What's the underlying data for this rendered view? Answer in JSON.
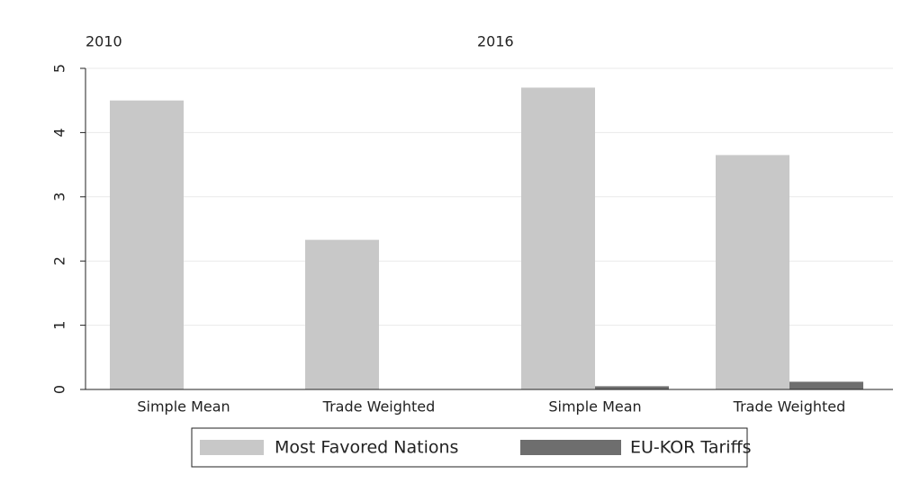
{
  "chart_data": [
    {
      "type": "bar",
      "title": "2010",
      "categories": [
        "Simple Mean",
        "Trade Weighted"
      ],
      "series": [
        {
          "name": "Most Favored Nations",
          "color": "#c8c8c8",
          "values": [
            4.5,
            2.33
          ]
        },
        {
          "name": "EU-KOR Tariffs",
          "color": "#6e6e6e",
          "values": [
            0,
            0
          ]
        }
      ],
      "ylim": [
        0,
        5
      ],
      "yticks": [
        0,
        1,
        2,
        3,
        4,
        5
      ],
      "grid": true
    },
    {
      "type": "bar",
      "title": "2016",
      "categories": [
        "Simple Mean",
        "Trade Weighted"
      ],
      "series": [
        {
          "name": "Most Favored Nations",
          "color": "#c8c8c8",
          "values": [
            4.7,
            3.65
          ]
        },
        {
          "name": "EU-KOR Tariffs",
          "color": "#6e6e6e",
          "values": [
            0.05,
            0.12
          ]
        }
      ],
      "ylim": [
        0,
        5
      ],
      "yticks": [
        0,
        1,
        2,
        3,
        4,
        5
      ],
      "grid": true
    }
  ]
}
